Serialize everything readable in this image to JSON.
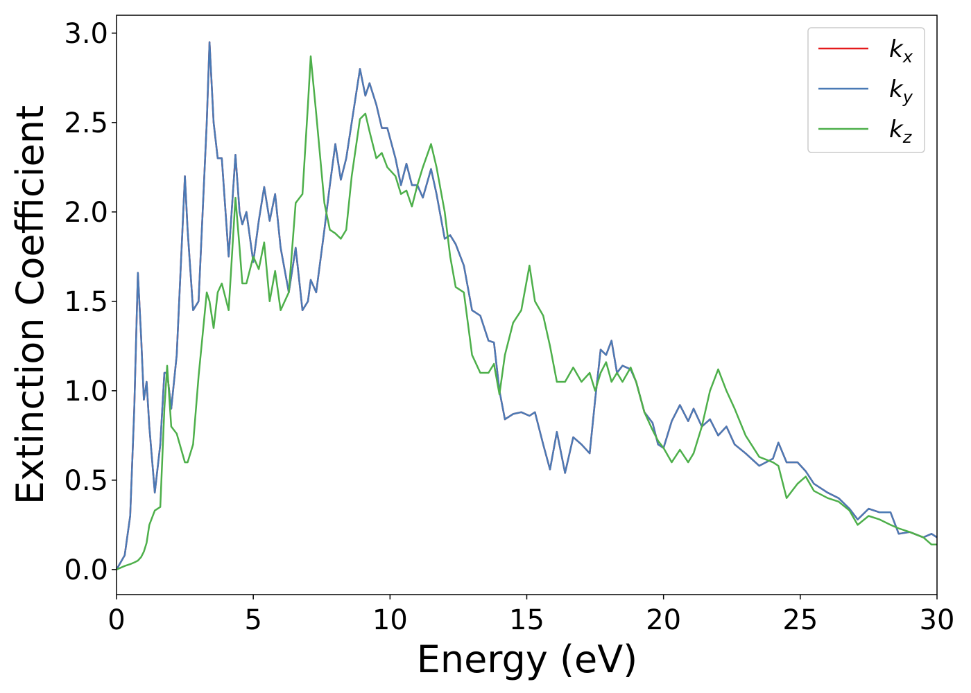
{
  "chart_data": {
    "type": "line",
    "xlabel": "Energy (eV)",
    "ylabel": "Extinction Coefficient",
    "x": [
      0,
      0.3,
      0.5,
      0.65,
      0.78,
      0.9,
      1.0,
      1.1,
      1.2,
      1.4,
      1.6,
      1.75,
      1.85,
      2.0,
      2.2,
      2.5,
      2.6,
      2.8,
      3.0,
      3.3,
      3.4,
      3.55,
      3.7,
      3.85,
      4.1,
      4.35,
      4.5,
      4.6,
      4.75,
      5.0,
      5.2,
      5.4,
      5.6,
      5.8,
      6.0,
      6.3,
      6.55,
      6.8,
      7.0,
      7.1,
      7.3,
      7.6,
      7.8,
      8.0,
      8.2,
      8.4,
      8.6,
      8.9,
      9.1,
      9.25,
      9.5,
      9.7,
      9.9,
      10.2,
      10.4,
      10.6,
      10.8,
      11.0,
      11.2,
      11.5,
      11.7,
      12.0,
      12.2,
      12.4,
      12.7,
      13.0,
      13.3,
      13.6,
      13.8,
      14.0,
      14.2,
      14.5,
      14.8,
      15.1,
      15.3,
      15.6,
      15.85,
      16.1,
      16.4,
      16.7,
      17.0,
      17.3,
      17.5,
      17.7,
      17.9,
      18.1,
      18.3,
      18.5,
      18.8,
      19.0,
      19.3,
      19.6,
      19.8,
      20.0,
      20.3,
      20.6,
      20.9,
      21.1,
      21.4,
      21.7,
      22.0,
      22.3,
      22.6,
      23.0,
      23.5,
      24.0,
      24.2,
      24.5,
      24.9,
      25.2,
      25.5,
      26.0,
      26.4,
      26.8,
      27.1,
      27.5,
      27.9,
      28.3,
      28.6,
      29.0,
      29.5,
      29.8,
      30.0
    ],
    "series": [
      {
        "name": "kx",
        "color": "#e41a1c",
        "values": [
          0,
          0.08,
          0.3,
          0.9,
          1.66,
          1.3,
          0.95,
          1.05,
          0.8,
          0.43,
          0.7,
          1.1,
          1.1,
          0.9,
          1.2,
          2.2,
          1.9,
          1.45,
          1.5,
          2.5,
          2.95,
          2.5,
          2.3,
          2.3,
          1.75,
          2.32,
          2.0,
          1.93,
          2.0,
          1.72,
          1.95,
          2.14,
          1.95,
          2.1,
          1.8,
          1.55,
          1.8,
          1.45,
          1.5,
          1.62,
          1.55,
          1.9,
          2.15,
          2.38,
          2.18,
          2.3,
          2.5,
          2.8,
          2.65,
          2.72,
          2.6,
          2.47,
          2.47,
          2.3,
          2.15,
          2.27,
          2.15,
          2.15,
          2.08,
          2.24,
          2.1,
          1.85,
          1.87,
          1.82,
          1.7,
          1.45,
          1.42,
          1.28,
          1.27,
          1.0,
          0.84,
          0.87,
          0.88,
          0.86,
          0.88,
          0.7,
          0.56,
          0.77,
          0.54,
          0.74,
          0.7,
          0.65,
          0.95,
          1.23,
          1.2,
          1.28,
          1.1,
          1.14,
          1.12,
          1.05,
          0.88,
          0.82,
          0.7,
          0.68,
          0.83,
          0.92,
          0.83,
          0.9,
          0.8,
          0.84,
          0.75,
          0.8,
          0.7,
          0.65,
          0.58,
          0.62,
          0.71,
          0.6,
          0.6,
          0.55,
          0.48,
          0.43,
          0.4,
          0.34,
          0.28,
          0.34,
          0.32,
          0.32,
          0.2,
          0.21,
          0.18,
          0.2,
          0.18
        ]
      },
      {
        "name": "ky",
        "color": "#4a7ab5",
        "values": [
          0,
          0.08,
          0.3,
          0.9,
          1.66,
          1.3,
          0.95,
          1.05,
          0.8,
          0.43,
          0.7,
          1.1,
          1.1,
          0.9,
          1.2,
          2.2,
          1.9,
          1.45,
          1.5,
          2.5,
          2.95,
          2.5,
          2.3,
          2.3,
          1.75,
          2.32,
          2.0,
          1.93,
          2.0,
          1.72,
          1.95,
          2.14,
          1.95,
          2.1,
          1.8,
          1.55,
          1.8,
          1.45,
          1.5,
          1.62,
          1.55,
          1.9,
          2.15,
          2.38,
          2.18,
          2.3,
          2.5,
          2.8,
          2.65,
          2.72,
          2.6,
          2.47,
          2.47,
          2.3,
          2.15,
          2.27,
          2.15,
          2.15,
          2.08,
          2.24,
          2.1,
          1.85,
          1.87,
          1.82,
          1.7,
          1.45,
          1.42,
          1.28,
          1.27,
          1.0,
          0.84,
          0.87,
          0.88,
          0.86,
          0.88,
          0.7,
          0.56,
          0.77,
          0.54,
          0.74,
          0.7,
          0.65,
          0.95,
          1.23,
          1.2,
          1.28,
          1.1,
          1.14,
          1.12,
          1.05,
          0.88,
          0.82,
          0.7,
          0.68,
          0.83,
          0.92,
          0.83,
          0.9,
          0.8,
          0.84,
          0.75,
          0.8,
          0.7,
          0.65,
          0.58,
          0.62,
          0.71,
          0.6,
          0.6,
          0.55,
          0.48,
          0.43,
          0.4,
          0.34,
          0.28,
          0.34,
          0.32,
          0.32,
          0.2,
          0.21,
          0.18,
          0.2,
          0.18
        ]
      },
      {
        "name": "kz",
        "color": "#4daf4a",
        "values": [
          0,
          0.02,
          0.03,
          0.04,
          0.05,
          0.07,
          0.1,
          0.15,
          0.25,
          0.33,
          0.35,
          0.9,
          1.14,
          0.8,
          0.76,
          0.6,
          0.6,
          0.7,
          1.08,
          1.55,
          1.5,
          1.35,
          1.55,
          1.6,
          1.45,
          2.08,
          1.8,
          1.6,
          1.6,
          1.75,
          1.68,
          1.83,
          1.5,
          1.67,
          1.45,
          1.55,
          2.05,
          2.1,
          2.6,
          2.87,
          2.55,
          2.05,
          1.9,
          1.88,
          1.85,
          1.9,
          2.2,
          2.52,
          2.55,
          2.45,
          2.3,
          2.33,
          2.25,
          2.2,
          2.1,
          2.12,
          2.03,
          2.15,
          2.25,
          2.38,
          2.25,
          2.0,
          1.75,
          1.58,
          1.55,
          1.2,
          1.1,
          1.1,
          1.15,
          0.98,
          1.2,
          1.38,
          1.45,
          1.7,
          1.5,
          1.42,
          1.25,
          1.05,
          1.05,
          1.13,
          1.05,
          1.1,
          1.0,
          1.1,
          1.16,
          1.05,
          1.1,
          1.05,
          1.13,
          1.05,
          0.88,
          0.78,
          0.72,
          0.68,
          0.6,
          0.67,
          0.6,
          0.65,
          0.8,
          1.0,
          1.12,
          1.0,
          0.9,
          0.75,
          0.63,
          0.6,
          0.58,
          0.4,
          0.48,
          0.52,
          0.44,
          0.4,
          0.38,
          0.33,
          0.25,
          0.3,
          0.28,
          0.25,
          0.23,
          0.21,
          0.18,
          0.14,
          0.14
        ]
      }
    ],
    "xlim": [
      0,
      30
    ],
    "xticks": [
      0,
      5,
      10,
      15,
      20,
      25,
      30
    ],
    "ylim": [
      -0.14,
      3.1
    ],
    "yticks": [
      {
        "value": 0,
        "label": "0.0"
      },
      0.5,
      {
        "value": 1,
        "label": "1.0"
      },
      1.5,
      {
        "value": 2,
        "label": "2.0"
      },
      2.5,
      {
        "value": 3,
        "label": "3.0"
      }
    ],
    "grid": false,
    "legend": "upper right"
  }
}
